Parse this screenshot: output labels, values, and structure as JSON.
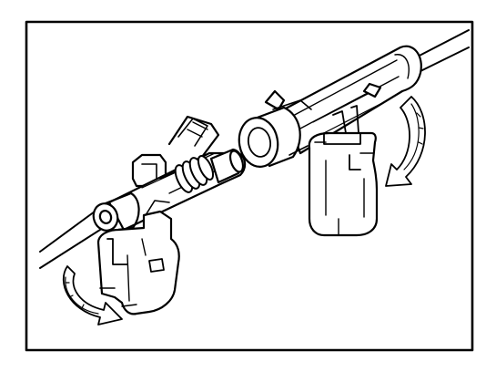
{
  "figure": {
    "aria_label": "",
    "stroke_color": "#000000",
    "fill_color": "#ffffff"
  }
}
